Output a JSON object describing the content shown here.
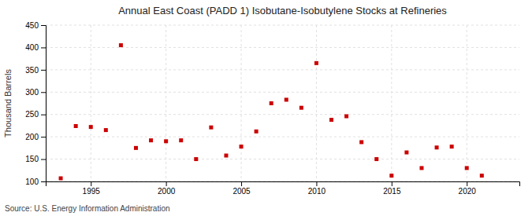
{
  "chart_data": {
    "type": "scatter",
    "title": "Annual East Coast (PADD 1) Isobutane-Isobutylene Stocks at Refineries",
    "ylabel": "Thousand Barrels",
    "source": "Source: U.S. Energy Information Administration",
    "x": [
      1993,
      1994,
      1995,
      1996,
      1997,
      1998,
      1999,
      2000,
      2001,
      2002,
      2003,
      2004,
      2005,
      2006,
      2007,
      2008,
      2009,
      2010,
      2011,
      2012,
      2013,
      2014,
      2015,
      2016,
      2017,
      2018,
      2019,
      2020,
      2021
    ],
    "values": [
      107,
      224,
      222,
      215,
      405,
      175,
      192,
      190,
      192,
      150,
      221,
      158,
      178,
      212,
      275,
      283,
      265,
      365,
      238,
      246,
      188,
      150,
      113,
      165,
      130,
      176,
      178,
      130,
      113
    ],
    "color": "#cc0000",
    "marker": "square",
    "xlim": [
      1992,
      2023.5
    ],
    "xticks": [
      1995,
      2000,
      2005,
      2010,
      2015,
      2020
    ],
    "ylim": [
      100,
      450
    ],
    "yticks": [
      100,
      150,
      200,
      250,
      300,
      350,
      400,
      450
    ],
    "grid": true
  }
}
